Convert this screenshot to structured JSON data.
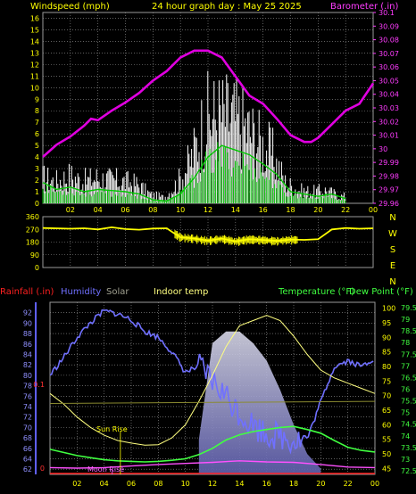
{
  "header": {
    "left_label": "Windspeed (mph)",
    "title": "24 hour graph day : May 25 2025",
    "right_label": "Barometer (.in)"
  },
  "colors": {
    "background": "#000000",
    "grid": "#9a9a9a",
    "windspeed": "#ffffff",
    "wind_avg": "#00c800",
    "barometer": "#e000e0",
    "direction": "#ffff00",
    "rainfall": "#ff2020",
    "humidity": "#7070ff",
    "solar": "#b0b0b0",
    "indoor_temp": "#ffff80",
    "temperature": "#40ff40",
    "dew_point": "#40ff40"
  },
  "panel_bottom_labels": {
    "rainfall": "Rainfall (.in)",
    "humidity": "Humidity",
    "solar": "Solar",
    "indoor_temp": "Indoor temp",
    "temperature": "Temperature (°F)",
    "dew_point": "Dew Point (°F)",
    "sun_rise": "Sun Rise",
    "moon_rise": "Moon Rise"
  },
  "direction_labels": [
    "N",
    "W",
    "S",
    "E",
    "N"
  ],
  "chart_data": [
    {
      "type": "line",
      "title": "24 hour graph day : May 25 2025",
      "x_ticks": [
        "02",
        "04",
        "06",
        "08",
        "10",
        "12",
        "14",
        "16",
        "18",
        "20",
        "22",
        "00"
      ],
      "y_left_label": "Windspeed (mph)",
      "y_left_ticks": [
        "0",
        "1",
        "2",
        "3",
        "4",
        "5",
        "6",
        "7",
        "8",
        "9",
        "10",
        "11",
        "12",
        "13",
        "14",
        "15",
        "16"
      ],
      "ylim_left": [
        0,
        16.5
      ],
      "y_right_label": "Barometer (.in)",
      "y_right_ticks": [
        "29.96",
        "29.97",
        "29.98",
        "29.99",
        "30",
        "30.01",
        "30.02",
        "30.03",
        "30.04",
        "30.05",
        "30.06",
        "30.07",
        "30.08",
        "30.09",
        "30.1"
      ],
      "ylim_right": [
        29.96,
        30.1
      ],
      "grid": true,
      "series": [
        {
          "name": "Barometer",
          "axis": "right",
          "x": [
            0,
            1,
            2,
            3,
            3.5,
            4,
            5,
            6,
            7,
            8,
            9,
            10,
            11,
            12,
            13,
            14,
            15,
            16,
            17,
            18,
            19,
            19.5,
            20,
            21,
            22,
            23,
            24
          ],
          "y": [
            29.994,
            30.003,
            30.009,
            30.017,
            30.022,
            30.021,
            30.028,
            30.034,
            30.041,
            30.05,
            30.057,
            30.067,
            30.072,
            30.072,
            30.067,
            30.053,
            30.039,
            30.033,
            30.022,
            30.01,
            30.005,
            30.005,
            30.008,
            30.018,
            30.028,
            30.033,
            30.048
          ]
        },
        {
          "name": "Wind gust",
          "axis": "left",
          "x": [
            0,
            1,
            2,
            3,
            4,
            5,
            6,
            7,
            8,
            9,
            10,
            11,
            12,
            13,
            14,
            15,
            16,
            17,
            18,
            19,
            20,
            21,
            22
          ],
          "y": [
            3.5,
            3.0,
            3.8,
            3.0,
            3.5,
            3.2,
            3.0,
            2.6,
            1.2,
            0.8,
            2.8,
            6.0,
            11.5,
            12.0,
            11.8,
            10.5,
            8.5,
            6.8,
            2.8,
            1.8,
            1.6,
            1.8,
            1.0
          ]
        },
        {
          "name": "Wind average",
          "axis": "left",
          "x": [
            0,
            1,
            2,
            3,
            4,
            5,
            6,
            7,
            8,
            9,
            10,
            11,
            12,
            13,
            14,
            15,
            16,
            17,
            18,
            19,
            20,
            21,
            22
          ],
          "y": [
            1.8,
            1.2,
            1.4,
            1.0,
            1.2,
            1.1,
            1.0,
            0.8,
            0.3,
            0.2,
            0.8,
            2.2,
            4.0,
            5.0,
            4.6,
            4.2,
            3.4,
            2.5,
            1.0,
            0.8,
            0.6,
            0.8,
            0.4
          ]
        }
      ]
    },
    {
      "type": "line",
      "title": "",
      "x_ticks": [
        "02",
        "04",
        "06",
        "08",
        "10",
        "12",
        "14",
        "16",
        "18",
        "20",
        "22",
        "00"
      ],
      "y_ticks": [
        "360",
        "270",
        "180",
        "90",
        "0"
      ],
      "ylim": [
        0,
        360
      ],
      "grid": true,
      "series": [
        {
          "name": "Wind direction",
          "x": [
            0,
            2,
            3,
            4,
            5,
            6,
            7,
            8,
            9,
            9.5,
            10,
            11,
            12,
            13,
            14,
            15,
            16,
            17,
            18,
            19,
            20,
            21,
            22,
            23,
            24
          ],
          "y": [
            280,
            275,
            278,
            270,
            285,
            272,
            268,
            276,
            278,
            245,
            215,
            205,
            190,
            205,
            185,
            200,
            195,
            188,
            198,
            196,
            200,
            270,
            280,
            275,
            278
          ]
        }
      ]
    },
    {
      "type": "line",
      "title": "",
      "x_ticks": [
        "02",
        "04",
        "06",
        "08",
        "10",
        "12",
        "14",
        "16",
        "18",
        "20",
        "22",
        "00"
      ],
      "y_left_ticks": [
        "62",
        "64",
        "66",
        "68",
        "70",
        "72",
        "74",
        "76",
        "78",
        "80",
        "82",
        "84",
        "86",
        "88",
        "90",
        "92"
      ],
      "ylim_left": [
        61,
        94
      ],
      "y_right_ticks": [
        "45",
        "50",
        "55",
        "60",
        "65",
        "70",
        "75",
        "80",
        "85",
        "90",
        "95",
        "100"
      ],
      "ylim_right": [
        43,
        102
      ],
      "y_right2_ticks": [
        "72.5",
        "73",
        "73.5",
        "74",
        "74.5",
        "75",
        "75.5",
        "76",
        "76.5",
        "77",
        "77.5",
        "78",
        "78.5",
        "79",
        "79.5"
      ],
      "y_rain_ticks": [
        "0",
        "0.1"
      ],
      "grid": true,
      "series": [
        {
          "name": "Humidity",
          "axis": "right",
          "x": [
            0,
            1,
            2,
            3,
            4,
            5,
            6,
            7,
            8,
            9,
            10,
            11,
            12,
            13,
            14,
            15,
            16,
            17,
            18,
            19,
            20,
            21,
            22,
            23,
            24
          ],
          "y": [
            77,
            83,
            90,
            95,
            99,
            98,
            96,
            92,
            90,
            85,
            78,
            80,
            75,
            70,
            64,
            60,
            57,
            56,
            55,
            55,
            68,
            80,
            82,
            80,
            83
          ]
        },
        {
          "name": "Indoor temp",
          "axis": "left",
          "x": [
            0,
            1,
            2,
            3,
            4,
            5,
            6,
            7,
            8,
            9,
            10,
            11,
            12,
            13,
            14,
            15,
            16,
            17,
            18,
            19,
            20,
            21,
            22,
            23,
            24
          ],
          "y": [
            76.5,
            74.5,
            72.0,
            70.0,
            68.5,
            67.5,
            67.0,
            66.6,
            66.7,
            68.0,
            70.5,
            75.0,
            80.0,
            85.5,
            89.5,
            90.5,
            91.5,
            90.5,
            87.5,
            84.0,
            81.0,
            79.5,
            78.5,
            77.5,
            76.5
          ]
        },
        {
          "name": "Temperature",
          "axis": "left",
          "x": [
            0,
            1,
            2,
            3,
            4,
            5,
            6,
            7,
            8,
            9,
            10,
            11,
            12,
            13,
            14,
            15,
            16,
            17,
            18,
            19,
            20,
            21,
            22,
            23,
            24
          ],
          "y": [
            65.8,
            65.2,
            64.6,
            64.2,
            63.8,
            63.6,
            63.5,
            63.4,
            63.5,
            63.7,
            64.0,
            64.8,
            66.0,
            67.6,
            68.6,
            69.2,
            69.6,
            70.0,
            70.2,
            69.6,
            68.9,
            67.5,
            66.2,
            65.6,
            65.3
          ]
        },
        {
          "name": "Dew Point",
          "axis": "left",
          "x": [
            0,
            2,
            4,
            6,
            8,
            10,
            12,
            14,
            16,
            18,
            20,
            22,
            24
          ],
          "y": [
            62.3,
            62.2,
            62.3,
            62.6,
            62.9,
            63.1,
            63.3,
            63.6,
            63.4,
            63.3,
            62.9,
            62.4,
            62.3
          ]
        },
        {
          "name": "Solar",
          "axis": "right",
          "x": [
            11,
            12,
            13,
            14,
            15,
            16,
            17,
            18,
            19,
            20
          ],
          "y": [
            55,
            88,
            92,
            92,
            88,
            82,
            72,
            60,
            50,
            45
          ]
        }
      ]
    }
  ]
}
